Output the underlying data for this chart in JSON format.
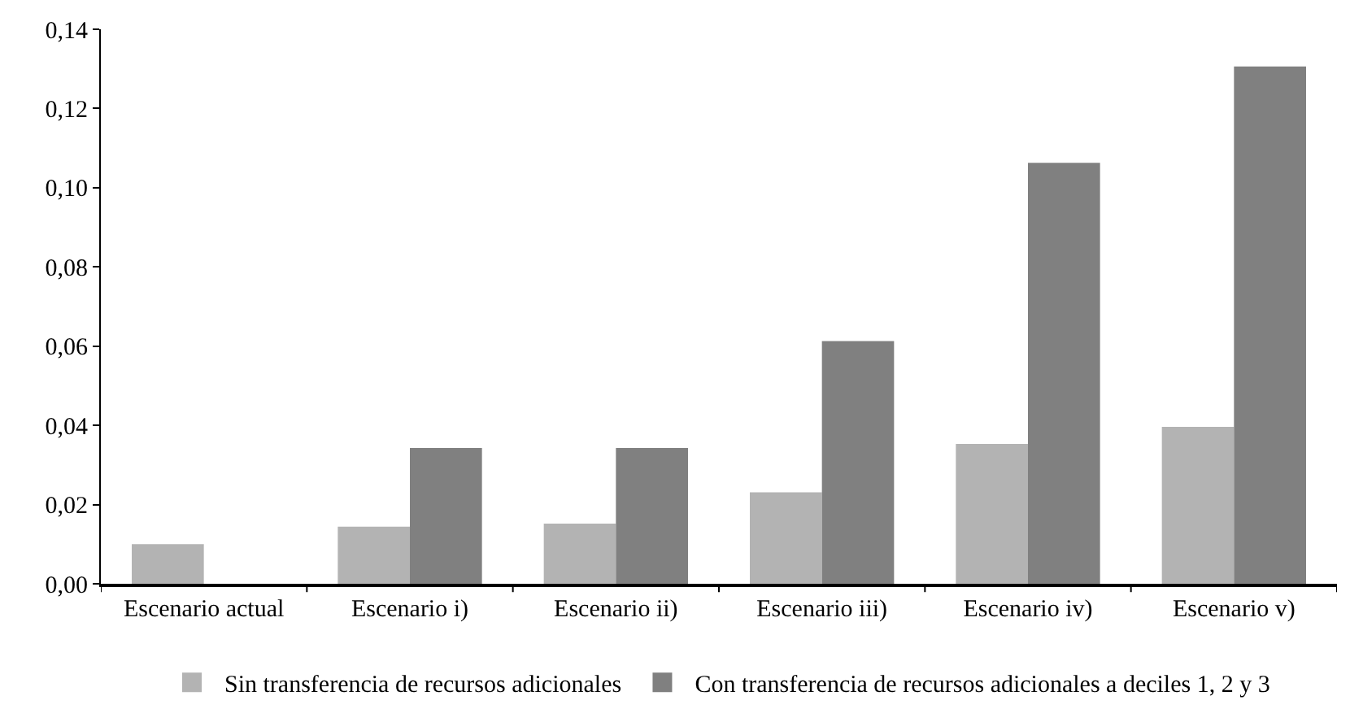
{
  "chart_data": {
    "type": "bar",
    "categories": [
      "Escenario actual",
      "Escenario i)",
      "Escenario ii)",
      "Escenario iii)",
      "Escenario iv)",
      "Escenario v)"
    ],
    "series": [
      {
        "name": "Sin transferencia de recursos adicionales",
        "color": "#b3b3b3",
        "values": [
          0.01,
          0.0144,
          0.0152,
          0.0231,
          0.0353,
          0.0396
        ]
      },
      {
        "name": "Con transferencia de recursos adicionales a deciles 1, 2 y 3",
        "color": "#808080",
        "values": [
          null,
          0.0343,
          0.0343,
          0.0613,
          0.1063,
          0.1306
        ]
      }
    ],
    "ylim": [
      0,
      0.14
    ],
    "yticks": [
      {
        "value": 0,
        "label": "0,00"
      },
      {
        "value": 0.02,
        "label": "0,02"
      },
      {
        "value": 0.04,
        "label": "0,04"
      },
      {
        "value": 0.06,
        "label": "0,06"
      },
      {
        "value": 0.08,
        "label": "0,08"
      },
      {
        "value": 0.1,
        "label": "0,10"
      },
      {
        "value": 0.12,
        "label": "0,12"
      },
      {
        "value": 0.14,
        "label": "0,14"
      }
    ],
    "grid": false,
    "legend": "bottom"
  }
}
